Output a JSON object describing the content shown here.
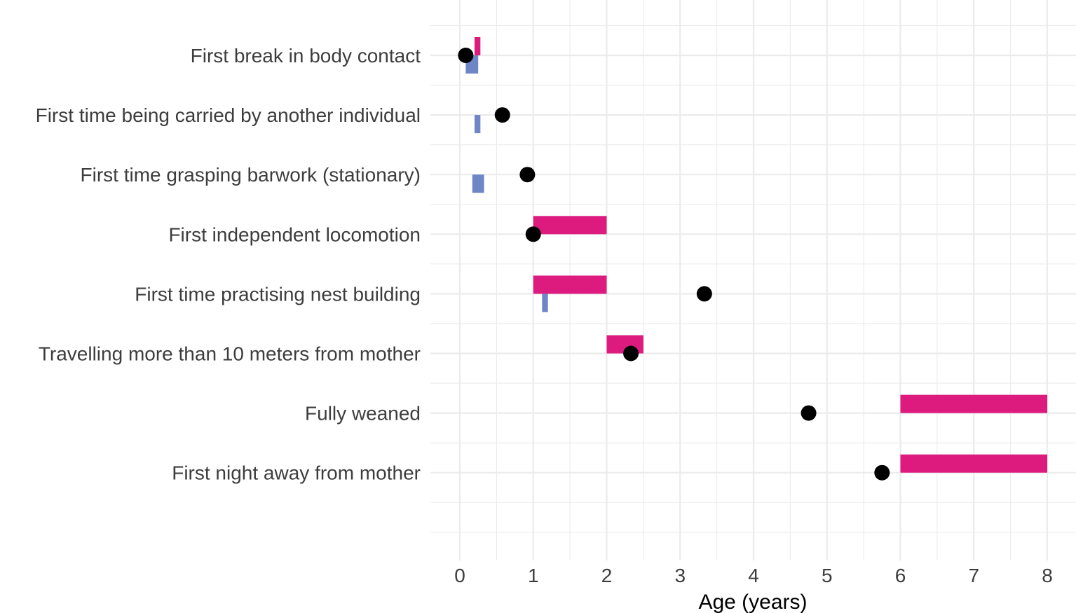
{
  "chart_data": {
    "type": "range-dot",
    "title": "",
    "xlabel": "Age (years)",
    "ylabel": "",
    "xlim": [
      -0.4,
      8.4
    ],
    "xticks": [
      0,
      1,
      2,
      3,
      4,
      5,
      6,
      7,
      8
    ],
    "grid": true,
    "legend": "none",
    "colors": {
      "range_a": "#dd1a7e",
      "range_b": "#6e86c6",
      "point": "#000000",
      "grid": "#ebebeb"
    },
    "rows": [
      {
        "label": "First break in body contact",
        "point": 0.08,
        "range_a": [
          0.2,
          0.28
        ],
        "range_b": [
          0.08,
          0.25
        ]
      },
      {
        "label": "First time being carried by another individual",
        "point": 0.58,
        "range_a": null,
        "range_b": [
          0.2,
          0.28
        ]
      },
      {
        "label": "First time grasping barwork (stationary)",
        "point": 0.92,
        "range_a": null,
        "range_b": [
          0.17,
          0.33
        ]
      },
      {
        "label": "First independent locomotion",
        "point": 1.0,
        "range_a": [
          1.0,
          2.0
        ],
        "range_b": null
      },
      {
        "label": "First time practising nest building",
        "point": 3.33,
        "range_a": [
          1.0,
          2.0
        ],
        "range_b": [
          1.12,
          1.2
        ]
      },
      {
        "label": "Travelling more than 10 meters from mother",
        "point": 2.33,
        "range_a": [
          2.0,
          2.5
        ],
        "range_b": null
      },
      {
        "label": "Fully weaned",
        "point": 4.75,
        "range_a": [
          6.0,
          8.0
        ],
        "range_b": null
      },
      {
        "label": "First night away from mother",
        "point": 5.75,
        "range_a": [
          6.0,
          8.0
        ],
        "range_b": null
      }
    ]
  }
}
